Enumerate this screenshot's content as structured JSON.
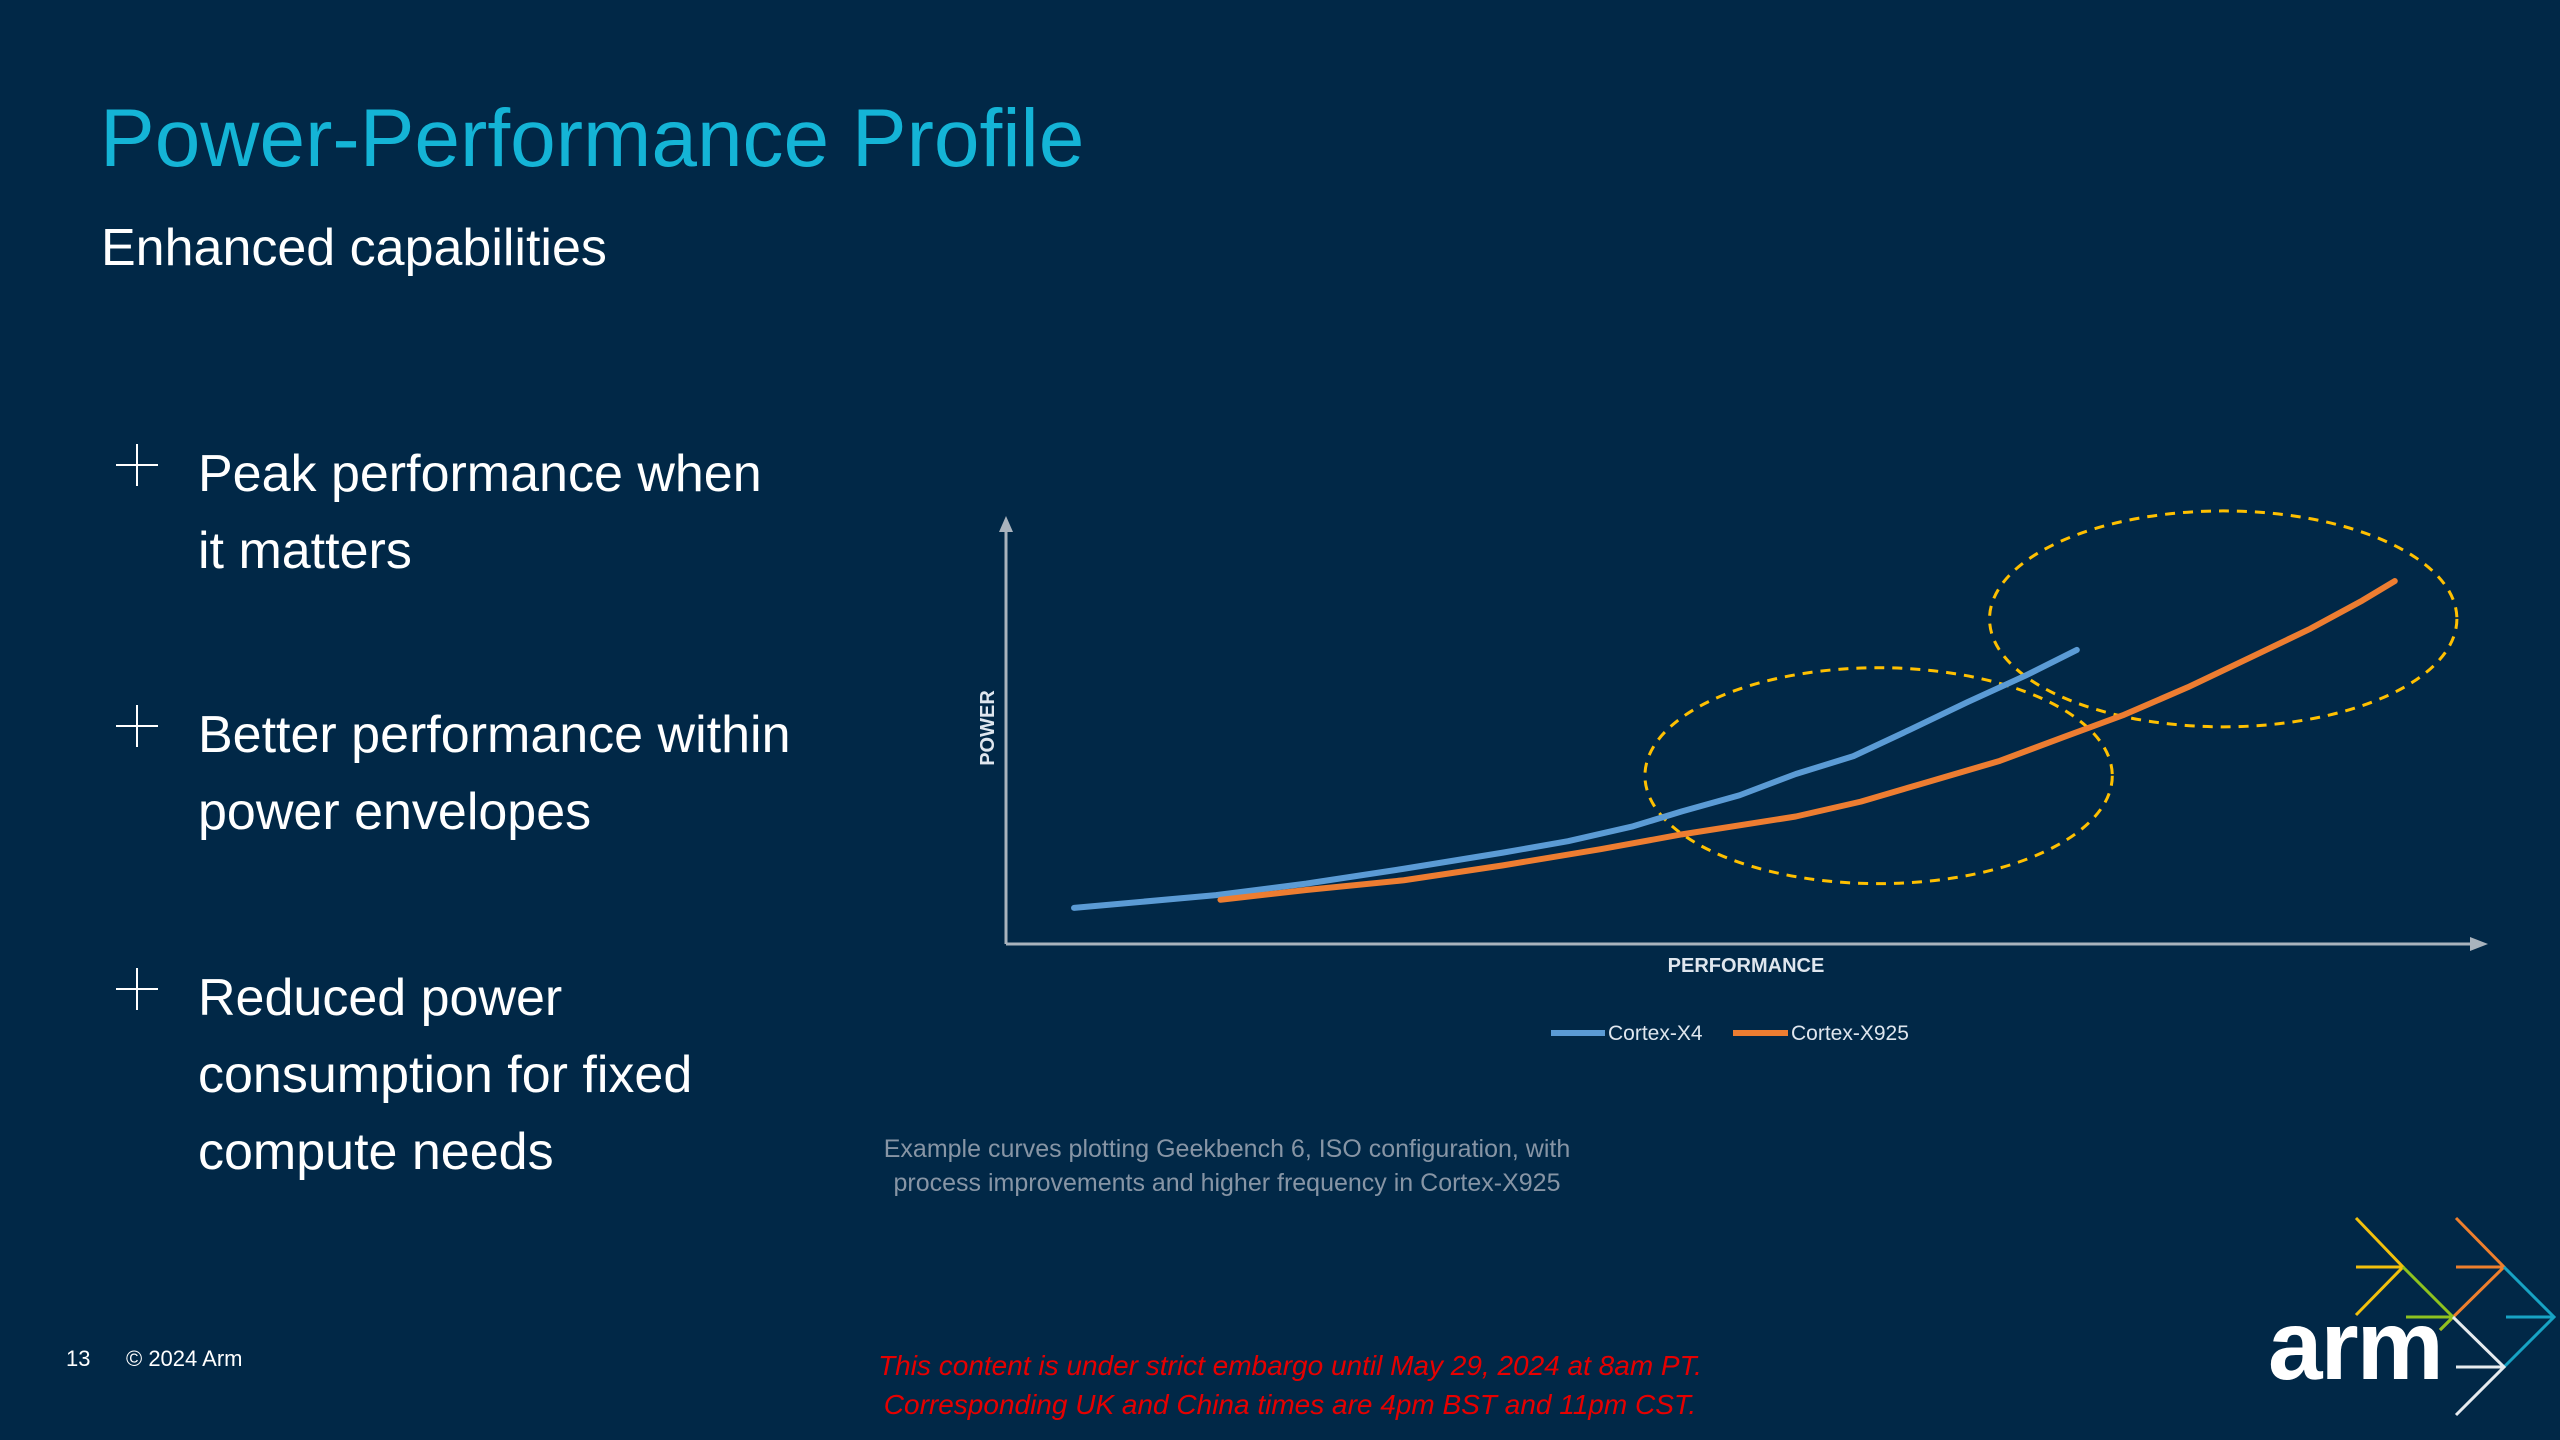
{
  "header": {
    "title": "Power-Performance Profile",
    "subtitle": "Enhanced capabilities"
  },
  "bullets": [
    {
      "icon": "plus-icon",
      "lines": [
        "Peak performance when",
        "it matters"
      ]
    },
    {
      "icon": "plus-icon",
      "lines": [
        "Better performance within",
        "power envelopes"
      ]
    },
    {
      "icon": "plus-icon",
      "lines": [
        "Reduced power",
        "consumption for fixed",
        "compute needs"
      ]
    }
  ],
  "chart_data": {
    "type": "line",
    "title": "",
    "xlabel": "PERFORMANCE",
    "ylabel": "POWER",
    "xlim": [
      0,
      100
    ],
    "ylim": [
      0,
      100
    ],
    "grid": false,
    "legend_position": "bottom-center",
    "series": [
      {
        "name": "Cortex-X4",
        "color": "#5b9bd5",
        "x": [
          4.6,
          14.2,
          20.3,
          26.9,
          33.6,
          38.0,
          42.4,
          45.7,
          49.6,
          53.4,
          57.3,
          61.1,
          65.0,
          68.9,
          72.4
        ],
        "y": [
          8.5,
          11.5,
          14.2,
          17.7,
          21.5,
          24.2,
          27.7,
          31.2,
          35.0,
          40.0,
          44.2,
          50.4,
          56.9,
          63.1,
          69.2
        ]
      },
      {
        "name": "Cortex-X925",
        "color": "#ed7d31",
        "x": [
          14.5,
          20.3,
          26.9,
          33.6,
          40.2,
          45.7,
          53.4,
          57.8,
          62.3,
          67.2,
          71.6,
          75.5,
          79.9,
          84.3,
          88.2,
          91.7,
          93.9
        ],
        "y": [
          10.4,
          12.7,
          15.0,
          18.5,
          22.3,
          25.8,
          30.0,
          33.5,
          38.1,
          43.1,
          48.8,
          53.8,
          60.4,
          67.7,
          74.2,
          80.8,
          85.4
        ]
      }
    ],
    "highlights": [
      {
        "type": "dashed-ellipse",
        "color": "#ffc000",
        "cx": 59.0,
        "cy": 39.6,
        "rx": 15.8,
        "ry": 25.4
      },
      {
        "type": "dashed-ellipse",
        "color": "#ffc000",
        "cx": 82.3,
        "cy": 76.5,
        "rx": 15.8,
        "ry": 25.4
      }
    ],
    "caption": [
      "Example curves plotting Geekbench 6, ISO configuration, with",
      "process improvements and higher frequency in Cortex-X925"
    ]
  },
  "footer": {
    "page_number": "13",
    "copyright": "© 2024 Arm",
    "embargo": [
      "This content is under strict embargo until May 29, 2024 at 8am PT.",
      "Corresponding UK and China times are 4pm BST and 11pm CST."
    ]
  },
  "logo": {
    "text": "arm"
  }
}
